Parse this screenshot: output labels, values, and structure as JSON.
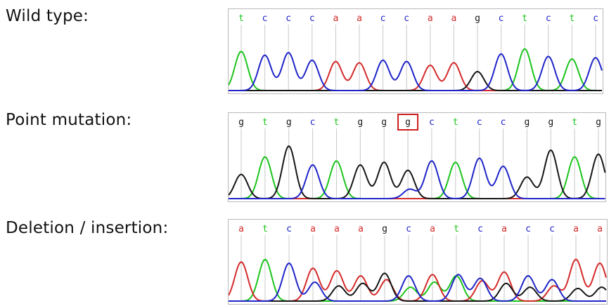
{
  "colors": {
    "a": "#d42a2a",
    "c": "#1f25c8",
    "g": "#161616",
    "t": "#1cc41c",
    "highlight": "#cc1e1e",
    "guide": "#c8c8c8"
  },
  "rows": [
    {
      "label": "Wild type:",
      "bases": [
        "t",
        "c",
        "c",
        "c",
        "a",
        "a",
        "c",
        "c",
        "a",
        "a",
        "g",
        "c",
        "t",
        "c",
        "t",
        "c"
      ],
      "highlight_index": null,
      "peak_levels": [
        0.62,
        0.56,
        0.6,
        0.48,
        0.46,
        0.44,
        0.48,
        0.46,
        0.4,
        0.44,
        0.3,
        0.58,
        0.66,
        0.54,
        0.5,
        0.52
      ],
      "secondary": []
    },
    {
      "label": "Point mutation:",
      "bases": [
        "g",
        "t",
        "g",
        "c",
        "t",
        "g",
        "g",
        "g",
        "c",
        "t",
        "c",
        "c",
        "g",
        "g",
        "t",
        "g"
      ],
      "highlight_index": 7,
      "peak_levels": [
        0.36,
        0.62,
        0.78,
        0.5,
        0.56,
        0.5,
        0.54,
        0.42,
        0.56,
        0.54,
        0.6,
        0.48,
        0.32,
        0.72,
        0.62,
        0.66
      ],
      "secondary": [
        {
          "index": 7,
          "base": "c",
          "level": 0.14
        }
      ]
    },
    {
      "label": "Deletion / insertion:",
      "bases": [
        "a",
        "t",
        "c",
        "a",
        "a",
        "a",
        "g",
        "c",
        "a",
        "t",
        "c",
        "a",
        "c",
        "c",
        "a",
        "a"
      ],
      "highlight_index": null,
      "peak_levels": [
        0.62,
        0.66,
        0.6,
        0.52,
        0.48,
        0.4,
        0.44,
        0.4,
        0.42,
        0.4,
        0.36,
        0.46,
        0.4,
        0.34,
        0.66,
        0.6
      ],
      "secondary": [
        {
          "index": 3,
          "base": "c",
          "level": 0.3
        },
        {
          "index": 4,
          "base": "g",
          "level": 0.24
        },
        {
          "index": 5,
          "base": "g",
          "level": 0.28
        },
        {
          "index": 6,
          "base": "a",
          "level": 0.34
        },
        {
          "index": 7,
          "base": "t",
          "level": 0.22
        },
        {
          "index": 8,
          "base": "t",
          "level": 0.3
        },
        {
          "index": 9,
          "base": "c",
          "level": 0.42
        },
        {
          "index": 10,
          "base": "a",
          "level": 0.32
        },
        {
          "index": 11,
          "base": "g",
          "level": 0.28
        },
        {
          "index": 12,
          "base": "g",
          "level": 0.22
        },
        {
          "index": 13,
          "base": "a",
          "level": 0.24
        },
        {
          "index": 14,
          "base": "g",
          "level": 0.2
        },
        {
          "index": 15,
          "base": "g",
          "level": 0.22
        }
      ]
    }
  ]
}
